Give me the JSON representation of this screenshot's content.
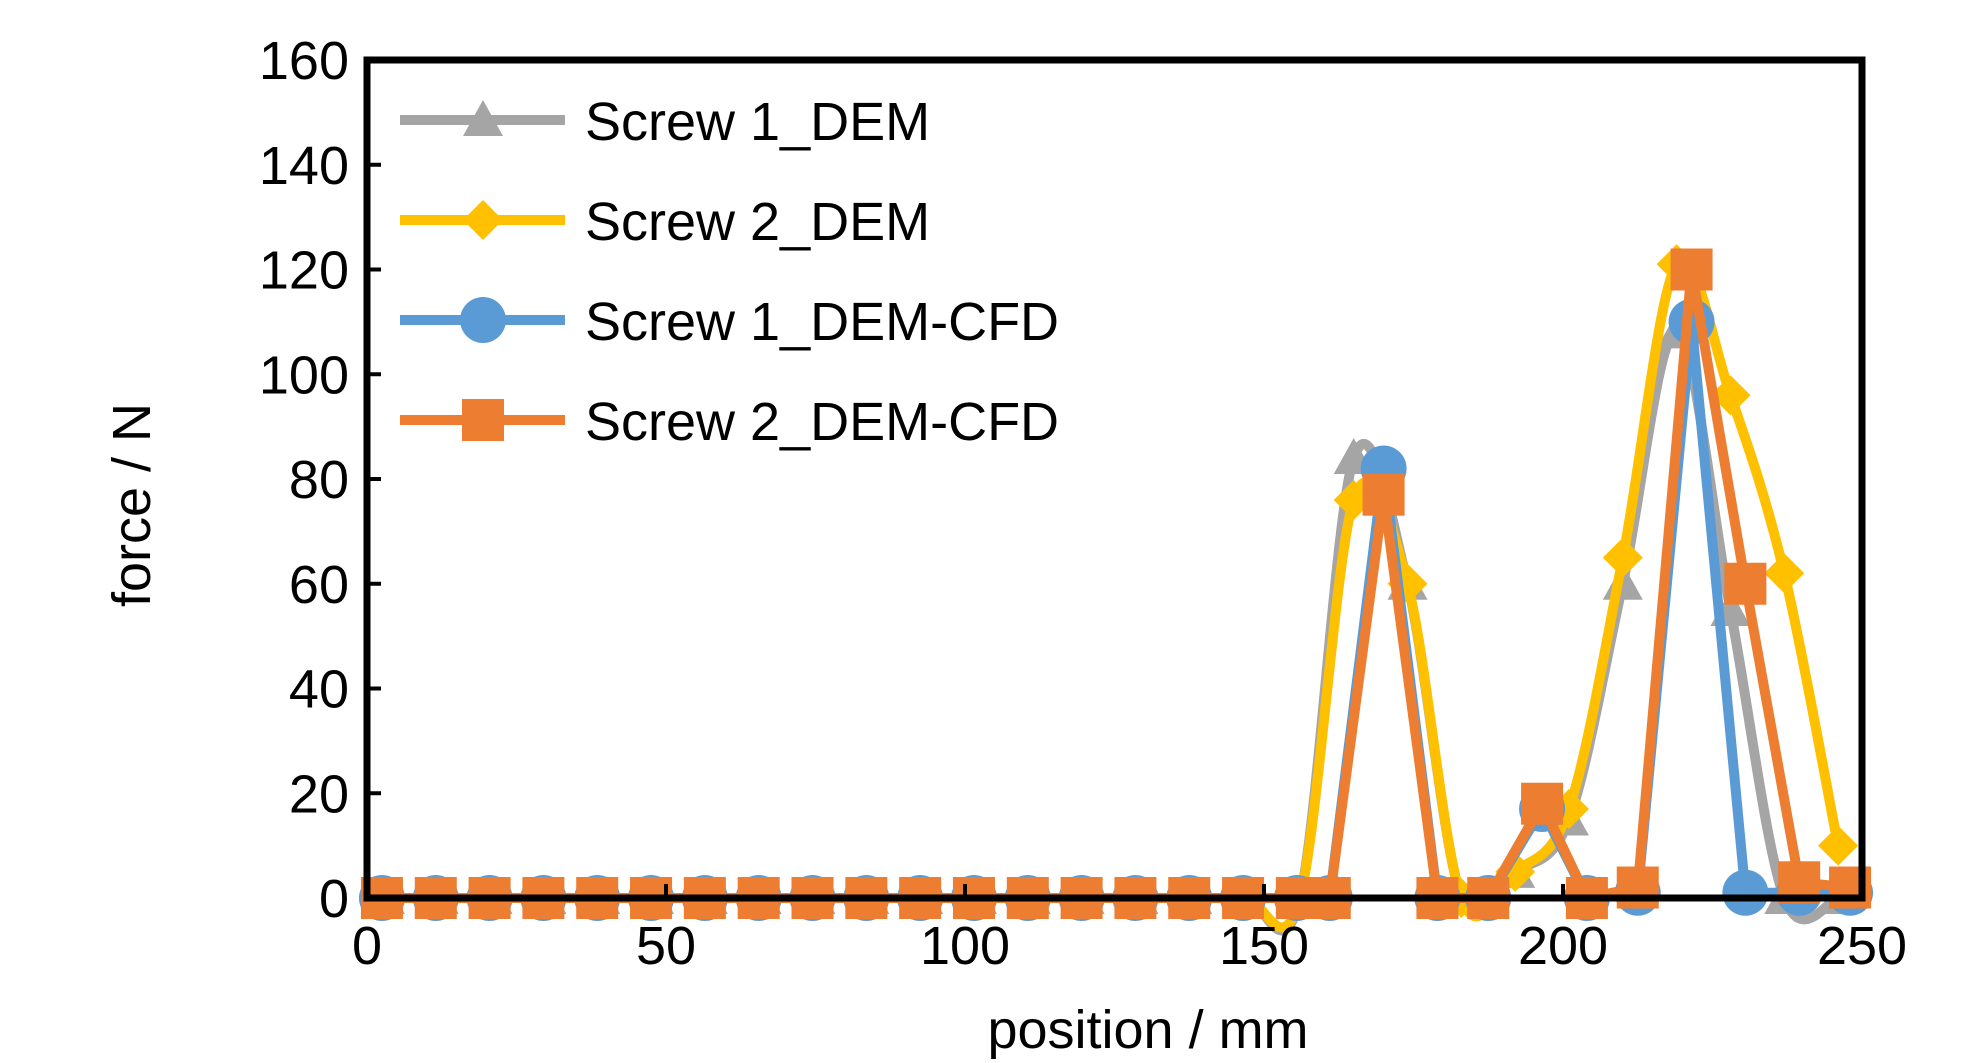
{
  "chart_data": {
    "type": "line",
    "title": "",
    "xlabel": "position / mm",
    "ylabel": "force / N",
    "xlim": [
      0,
      250
    ],
    "ylim": [
      0,
      160
    ],
    "xticks": [
      0,
      50,
      100,
      150,
      200,
      250
    ],
    "yticks": [
      0,
      20,
      40,
      60,
      80,
      100,
      120,
      140,
      160
    ],
    "grid": false,
    "legend_position": "top-left",
    "series": [
      {
        "name": "Screw 1_DEM",
        "color": "#a5a5a5",
        "marker": "triangle",
        "x": [
          3,
          12,
          21,
          30,
          39,
          48,
          57,
          66,
          75,
          84,
          93,
          102,
          111,
          120,
          129,
          138,
          147,
          156,
          165,
          174,
          183,
          192,
          201,
          210,
          219,
          228,
          237,
          246
        ],
        "y": [
          0,
          0,
          0,
          0,
          0,
          0,
          0,
          0,
          0,
          0,
          0,
          0,
          0,
          0,
          0,
          0,
          0,
          0,
          84,
          60,
          0,
          5,
          15,
          60,
          108,
          55,
          0,
          0
        ]
      },
      {
        "name": "Screw 2_DEM",
        "color": "#ffc000",
        "marker": "diamond",
        "x": [
          3,
          12,
          21,
          30,
          39,
          48,
          57,
          66,
          75,
          84,
          93,
          102,
          111,
          120,
          129,
          138,
          147,
          156,
          165,
          174,
          183,
          192,
          201,
          210,
          219,
          228,
          237,
          246
        ],
        "y": [
          0,
          0,
          0,
          0,
          0,
          0,
          0,
          0,
          0,
          0,
          0,
          0,
          0,
          0,
          0,
          0,
          0,
          0,
          76,
          60,
          0,
          5,
          17,
          65,
          121,
          96,
          62,
          10
        ]
      },
      {
        "name": "Screw 1_DEM-CFD",
        "color": "#5b9bd5",
        "marker": "circle",
        "x": [
          2.5,
          11.5,
          20.5,
          29.5,
          38.5,
          47.5,
          56.5,
          65.5,
          74.5,
          83.5,
          92.5,
          101.5,
          110.5,
          119.5,
          128.5,
          137.5,
          146.5,
          155.5,
          161,
          170,
          179,
          187.5,
          196.5,
          204,
          212.5,
          221.5,
          230.5,
          239.5,
          248
        ],
        "y": [
          0,
          0,
          0,
          0,
          0,
          0,
          0,
          0,
          0,
          0,
          0,
          0,
          0,
          0,
          0,
          0,
          0,
          0,
          0,
          82,
          0,
          0,
          17,
          0,
          1,
          110,
          1,
          1,
          1
        ]
      },
      {
        "name": "Screw 2_DEM-CFD",
        "color": "#ed7d31",
        "marker": "square",
        "x": [
          2.5,
          11.5,
          20.5,
          29.5,
          38.5,
          47.5,
          56.5,
          65.5,
          74.5,
          83.5,
          92.5,
          101.5,
          110.5,
          119.5,
          128.5,
          137.5,
          146.5,
          155.5,
          161,
          170,
          179,
          187.5,
          196.5,
          204,
          212.5,
          221.5,
          230.5,
          239.5,
          248
        ],
        "y": [
          0,
          0,
          0,
          0,
          0,
          0,
          0,
          0,
          0,
          0,
          0,
          0,
          0,
          0,
          0,
          0,
          0,
          0,
          0,
          77,
          0,
          0,
          18,
          0,
          2,
          120,
          60,
          3,
          2
        ]
      }
    ]
  }
}
